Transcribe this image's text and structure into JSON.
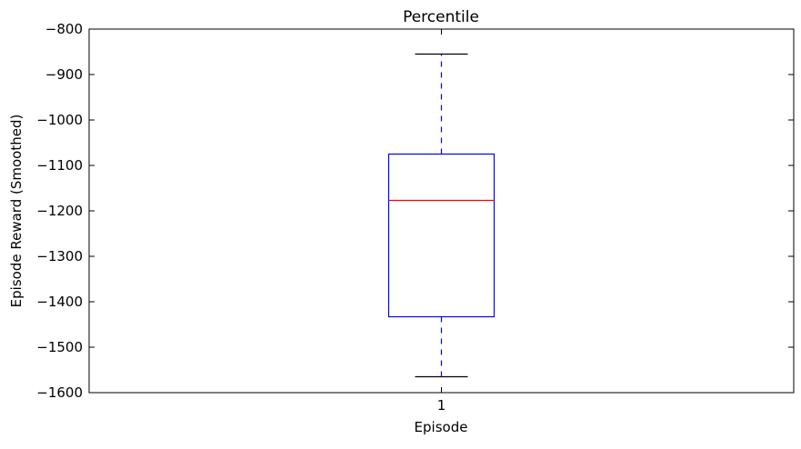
{
  "chart_data": {
    "type": "boxplot",
    "title": "Percentile",
    "xlabel": "Episode",
    "ylabel": "Episode Reward (Smoothed)",
    "ylim": [
      -1600,
      -800
    ],
    "y_ticks": [
      -800,
      -900,
      -1000,
      -1100,
      -1200,
      -1300,
      -1400,
      -1500,
      -1600
    ],
    "y_tick_labels": [
      "−800",
      "−900",
      "−1000",
      "−1100",
      "−1200",
      "−1300",
      "−1400",
      "−1500",
      "−1600"
    ],
    "categories": [
      "1"
    ],
    "grid": false,
    "series": [
      {
        "whisker_low": -1565,
        "q1": -1433,
        "median": -1177,
        "q3": -1075,
        "whisker_high": -855
      }
    ],
    "colors": {
      "box": "#0000ff",
      "median": "#ff0000",
      "whisker": "#0000ff",
      "cap": "#000000",
      "axes": "#000000"
    }
  }
}
